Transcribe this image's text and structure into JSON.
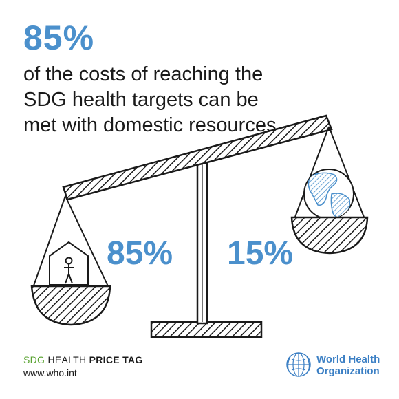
{
  "headline": {
    "number": "85%",
    "text": "of the costs of reaching the SDG health targets can be met with domestic resources"
  },
  "scale": {
    "left_label": "85%",
    "right_label": "15%",
    "left_value": 85,
    "right_value": 15
  },
  "footer": {
    "tag_prefix": "SDG",
    "tag_middle": " HEALTH ",
    "tag_suffix": "PRICE TAG",
    "url": "www.who.int",
    "org_name_line1": "World Health",
    "org_name_line2": "Organization"
  },
  "colors": {
    "accent_blue": "#4b90cc",
    "who_blue": "#3b7fc4",
    "tag_green": "#5aa332",
    "ink": "#1a1a1a"
  },
  "icons": [
    "house-person-icon",
    "globe-icon",
    "who-emblem-icon"
  ]
}
